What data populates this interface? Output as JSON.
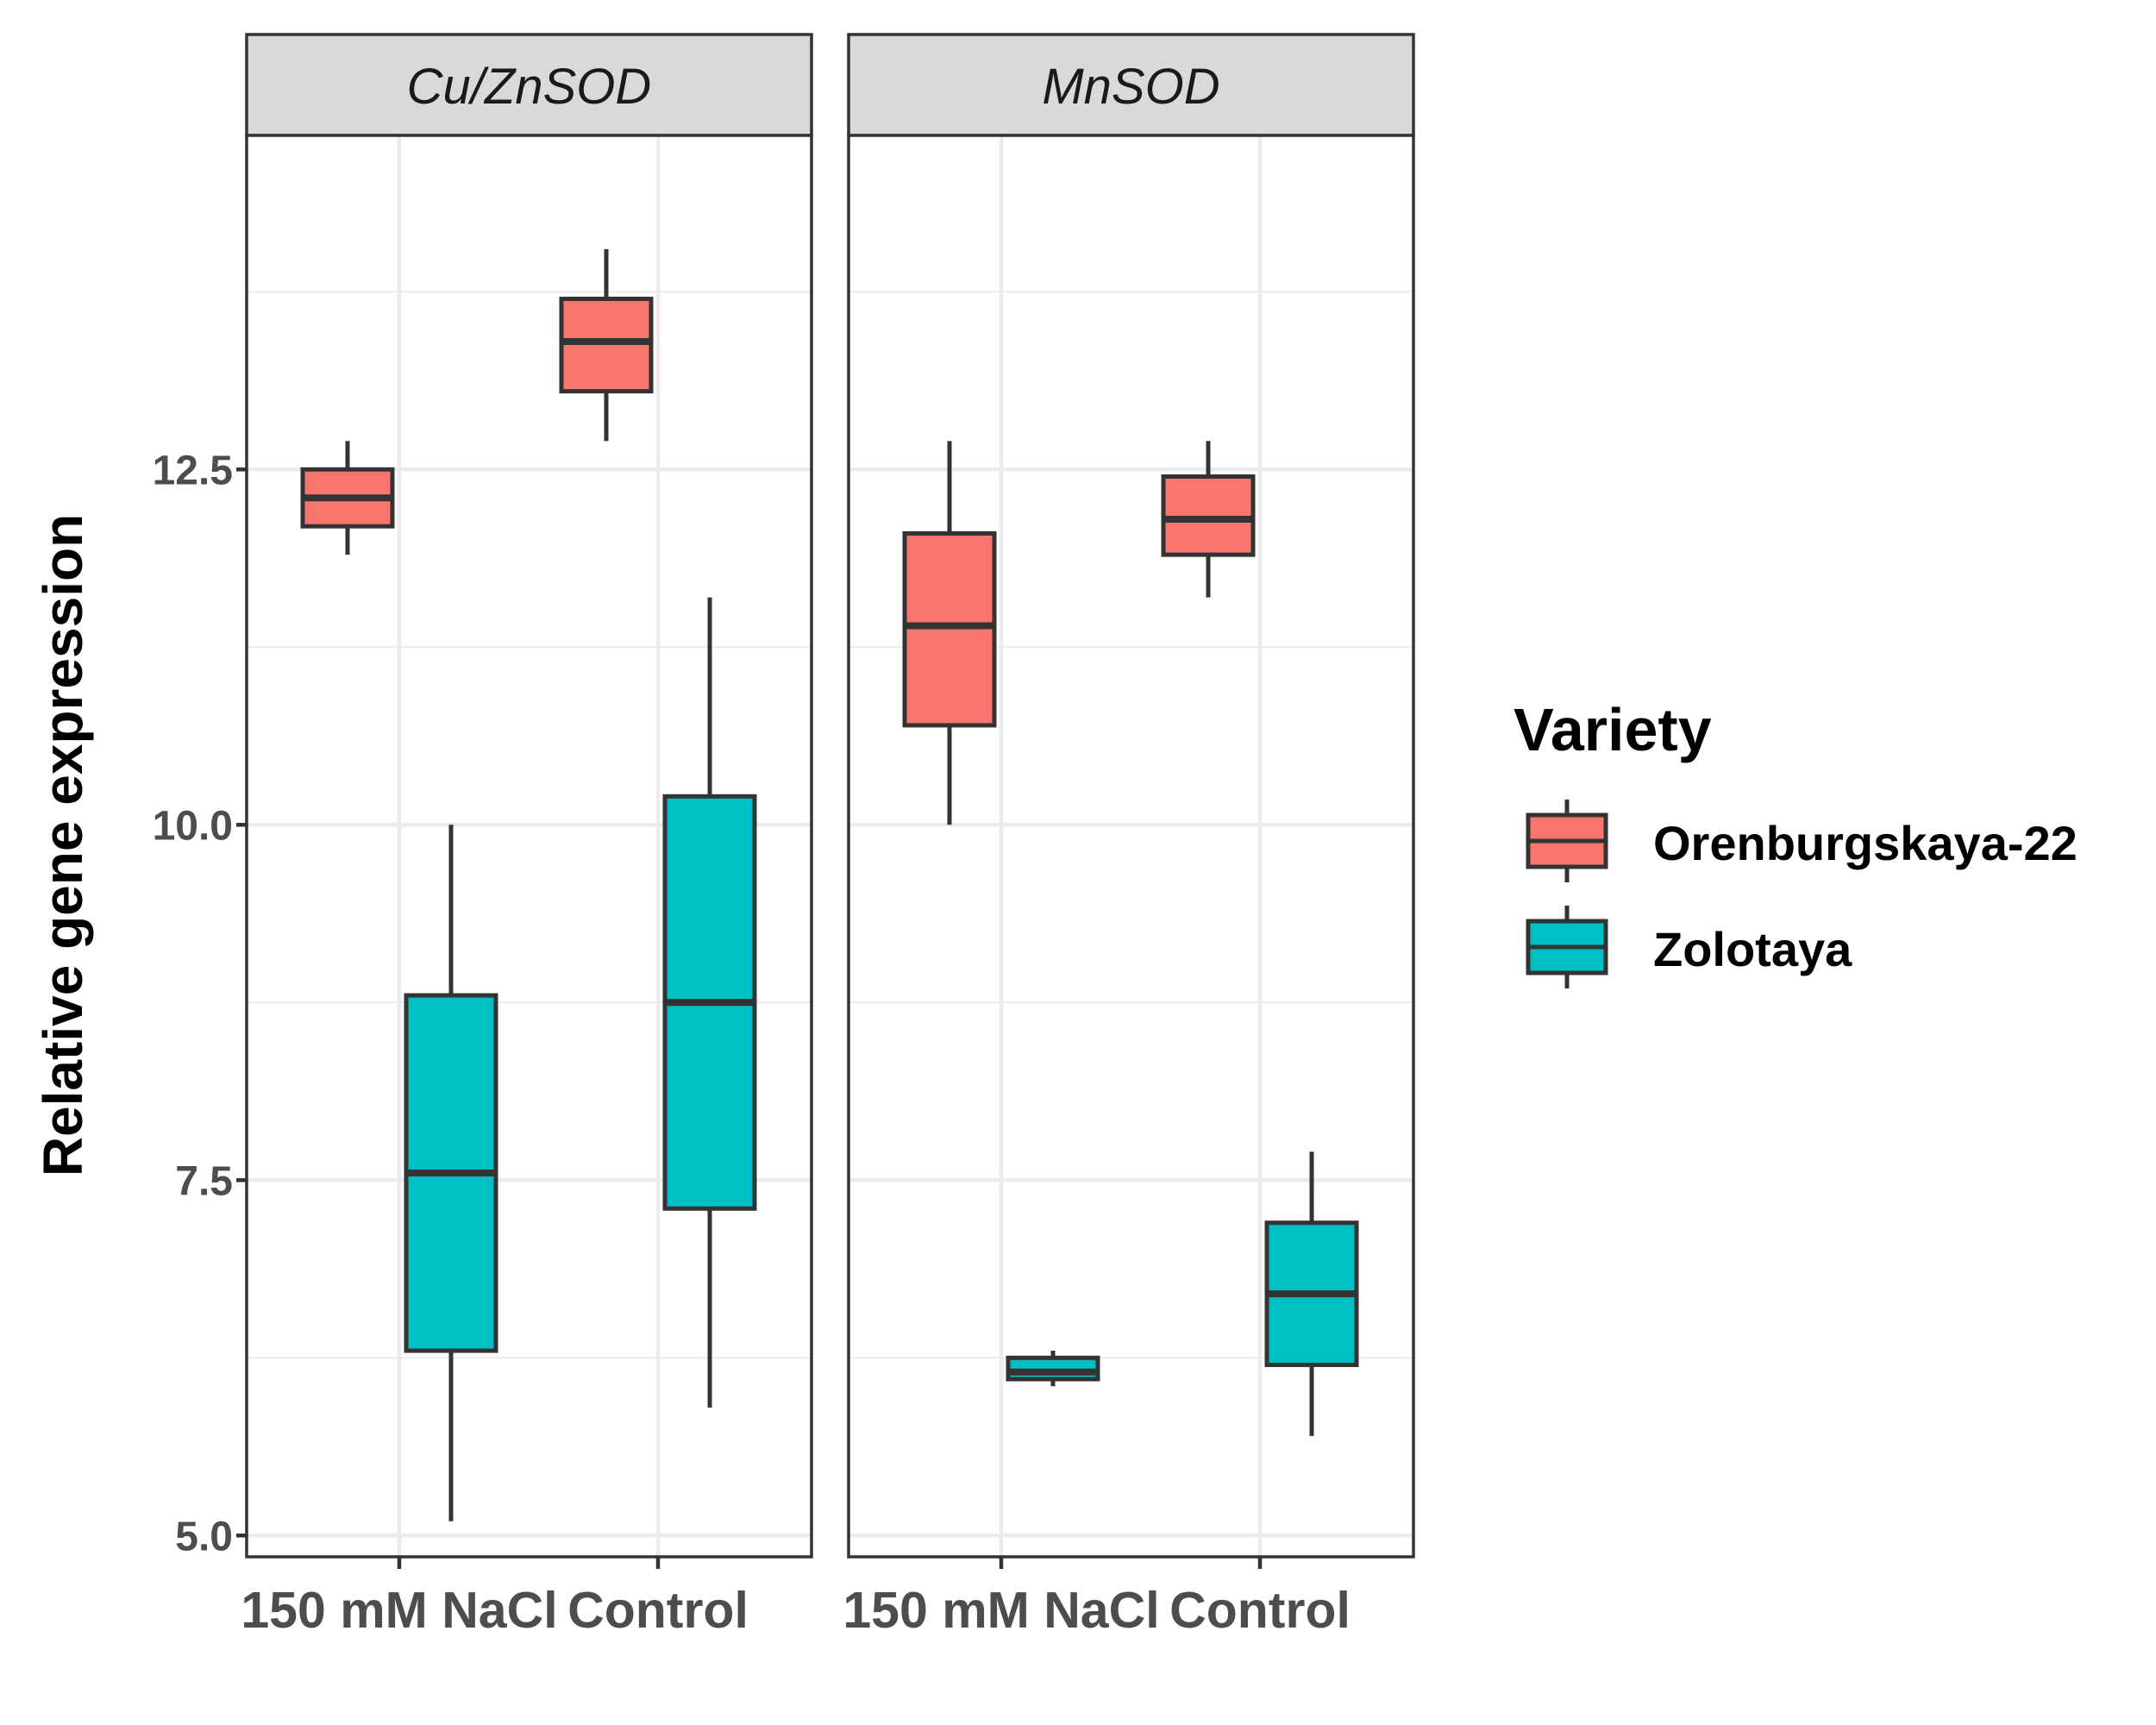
{
  "chart_data": {
    "type": "boxplot",
    "ylabel": "Relative gene expression",
    "ylim": [
      4.85,
      14.85
    ],
    "yticks": [
      5.0,
      7.5,
      10.0,
      12.5
    ],
    "ytick_labels": [
      "5.0",
      "7.5",
      "10.0",
      "12.5"
    ],
    "categories": [
      "150 mM NaCl",
      "Control"
    ],
    "grid": true,
    "legend": {
      "title": "Variety",
      "position": "right",
      "entries": [
        {
          "name": "Orenburgskaya-22",
          "color": "#F8766D"
        },
        {
          "name": "Zolotaya",
          "color": "#00BFC4"
        }
      ]
    },
    "facets": [
      {
        "title": "Cu/ZnSOD",
        "groups": [
          {
            "category": "150 mM NaCl",
            "variety": "Orenburgskaya-22",
            "min": 11.9,
            "q1": 12.1,
            "median": 12.3,
            "q3": 12.5,
            "max": 12.7
          },
          {
            "category": "150 mM NaCl",
            "variety": "Zolotaya",
            "min": 5.1,
            "q1": 6.3,
            "median": 7.55,
            "q3": 8.8,
            "max": 10.0
          },
          {
            "category": "Control",
            "variety": "Orenburgskaya-22",
            "min": 12.7,
            "q1": 13.05,
            "median": 13.4,
            "q3": 13.7,
            "max": 14.05
          },
          {
            "category": "Control",
            "variety": "Zolotaya",
            "min": 5.9,
            "q1": 7.3,
            "median": 8.75,
            "q3": 10.2,
            "max": 11.6
          }
        ]
      },
      {
        "title": "MnSOD",
        "groups": [
          {
            "category": "150 mM NaCl",
            "variety": "Orenburgskaya-22",
            "min": 10.0,
            "q1": 10.7,
            "median": 11.4,
            "q3": 12.05,
            "max": 12.7
          },
          {
            "category": "150 mM NaCl",
            "variety": "Zolotaya",
            "min": 6.05,
            "q1": 6.1,
            "median": 6.15,
            "q3": 6.25,
            "max": 6.3
          },
          {
            "category": "Control",
            "variety": "Orenburgskaya-22",
            "min": 11.6,
            "q1": 11.9,
            "median": 12.15,
            "q3": 12.45,
            "max": 12.7
          },
          {
            "category": "Control",
            "variety": "Zolotaya",
            "min": 5.7,
            "q1": 6.2,
            "median": 6.7,
            "q3": 7.2,
            "max": 7.7
          }
        ]
      }
    ]
  }
}
